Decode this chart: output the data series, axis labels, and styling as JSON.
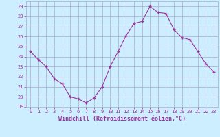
{
  "x": [
    0,
    1,
    2,
    3,
    4,
    5,
    6,
    7,
    8,
    9,
    10,
    11,
    12,
    13,
    14,
    15,
    16,
    17,
    18,
    19,
    20,
    21,
    22,
    23
  ],
  "y": [
    24.5,
    23.7,
    23.0,
    21.8,
    21.3,
    20.0,
    19.8,
    19.4,
    19.9,
    21.0,
    23.0,
    24.5,
    26.1,
    27.3,
    27.5,
    29.0,
    28.4,
    28.3,
    26.7,
    25.9,
    25.7,
    24.5,
    23.3,
    22.5
  ],
  "line_color": "#993399",
  "marker": "+",
  "markersize": 3.5,
  "linewidth": 0.8,
  "xlabel": "Windchill (Refroidissement éolien,°C)",
  "xlim": [
    -0.5,
    23.5
  ],
  "ylim": [
    19,
    29.5
  ],
  "yticks": [
    19,
    20,
    21,
    22,
    23,
    24,
    25,
    26,
    27,
    28,
    29
  ],
  "xticks": [
    0,
    1,
    2,
    3,
    4,
    5,
    6,
    7,
    8,
    9,
    10,
    11,
    12,
    13,
    14,
    15,
    16,
    17,
    18,
    19,
    20,
    21,
    22,
    23
  ],
  "bg_color": "#cceeff",
  "grid_color": "#aaaacc",
  "line_and_text_color": "#993399",
  "tick_label_fontsize": 5.0,
  "xlabel_fontsize": 6.0
}
